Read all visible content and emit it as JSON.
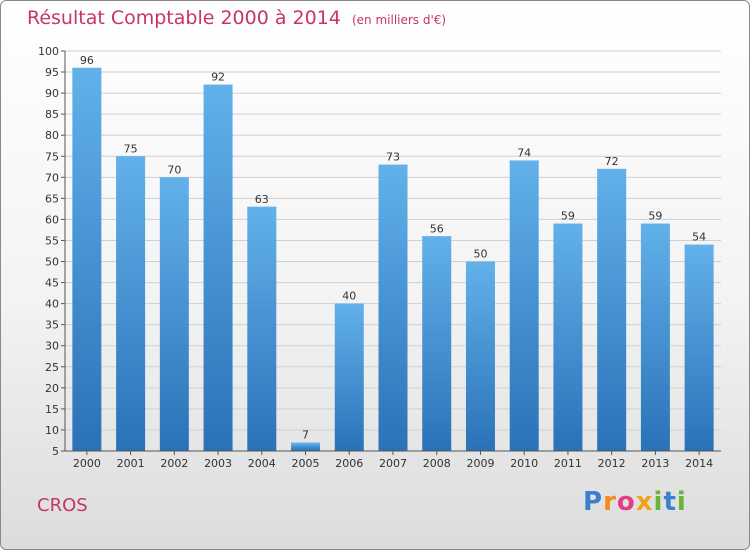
{
  "title": "Résultat Comptable 2000 à 2014",
  "subtitle": "(en milliers d'€)",
  "location": "CROS",
  "brand": {
    "text": "Proxiti",
    "letters": [
      "P",
      "r",
      "o",
      "x",
      "i",
      "t",
      "i"
    ],
    "colors": [
      "#3a7fd0",
      "#f08a1a",
      "#e23d85",
      "#f2a21a",
      "#6bb33a",
      "#3a7fd0",
      "#6bb33a"
    ]
  },
  "colors": {
    "bar": "#3d92d8",
    "bar_light": "#62b1ea",
    "bar_dark": "#2a72b8",
    "title": "#c8346a"
  },
  "chart_data": {
    "type": "bar",
    "title": "Résultat Comptable 2000 à 2014",
    "subtitle": "(en milliers d'€)",
    "xlabel": "",
    "ylabel": "",
    "categories": [
      "2000",
      "2001",
      "2002",
      "2003",
      "2004",
      "2005",
      "2006",
      "2007",
      "2008",
      "2009",
      "2010",
      "2011",
      "2012",
      "2013",
      "2014"
    ],
    "values": [
      96,
      75,
      70,
      92,
      63,
      7,
      40,
      73,
      56,
      50,
      74,
      59,
      72,
      59,
      54
    ],
    "ylim": [
      5,
      100
    ],
    "yticks": [
      5,
      10,
      15,
      20,
      25,
      30,
      35,
      40,
      45,
      50,
      55,
      60,
      65,
      70,
      75,
      80,
      85,
      90,
      95,
      100
    ],
    "grid": true,
    "data_labels": true
  }
}
